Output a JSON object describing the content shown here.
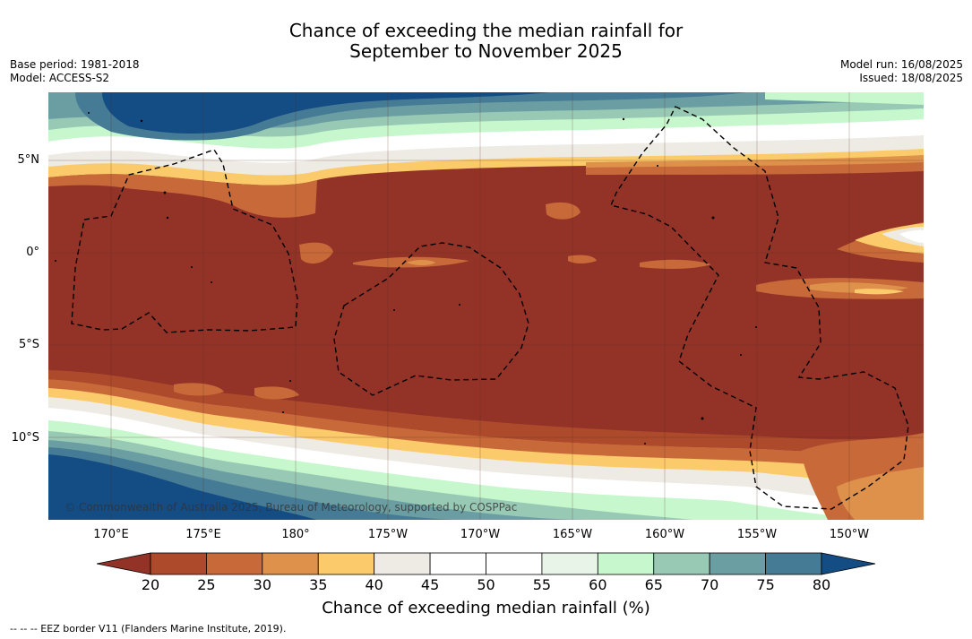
{
  "title": {
    "line1": "Chance of exceeding the median rainfall for",
    "line2": "September to November 2025"
  },
  "meta": {
    "base_period": "Base period: 1981-2018",
    "model": "Model: ACCESS-S2",
    "model_run": "Model run: 16/08/2025",
    "issued": "Issued: 18/08/2025"
  },
  "map": {
    "copyright": "© Commonwealth of Australia 2025, Bureau of Meteorology, supported by COSPPac",
    "lon_ticks": [
      "170°E",
      "175°E",
      "180°",
      "175°W",
      "170°W",
      "165°W",
      "160°W",
      "155°W",
      "150°W"
    ],
    "lat_ticks": [
      "5°N",
      "0°",
      "5°S",
      "10°S"
    ]
  },
  "colorbar": {
    "label": "Chance of exceeding median rainfall (%)",
    "ticks": [
      "20",
      "25",
      "30",
      "35",
      "40",
      "45",
      "50",
      "55",
      "60",
      "65",
      "70",
      "75",
      "80"
    ],
    "under_color": "#933227",
    "over_color": "#144c84",
    "colors": [
      "#ad4a2c",
      "#c8693a",
      "#de914a",
      "#fbca6a",
      "#eeebe5",
      "#ffffff",
      "#ffffff",
      "#e8f4e8",
      "#c6f7cd",
      "#98c9b4",
      "#6a9ea2",
      "#457b95"
    ]
  },
  "footer": "--  --  -- EEZ border V11 (Flanders Marine Institute, 2019)."
}
